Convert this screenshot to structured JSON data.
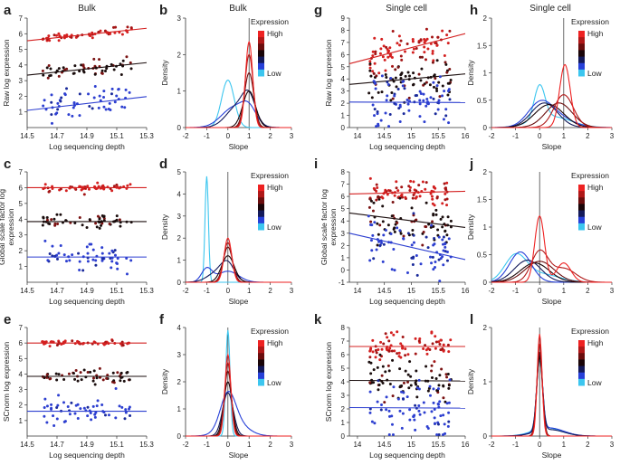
{
  "figure": {
    "column_headers": [
      {
        "label": "Bulk",
        "over": "a"
      },
      {
        "label": "Bulk",
        "over": "b"
      },
      {
        "label": "Single cell",
        "over": "g"
      },
      {
        "label": "Single cell",
        "over": "h"
      }
    ],
    "legend": {
      "title": "Expression",
      "high_label": "High",
      "low_label": "Low"
    },
    "colors": {
      "high": "#d42020",
      "mid": "#1a0d0d",
      "low": "#2d3fd0",
      "lowest": "#33c1e6",
      "gradient": [
        "#ee2222",
        "#b01818",
        "#6b0d0d",
        "#1a0508",
        "#141a5a",
        "#2740d8",
        "#3cc6ef"
      ]
    }
  },
  "chart_data": [
    {
      "id": "a",
      "type": "scatter",
      "panel_label": "a",
      "xlabel": "Log sequencing depth",
      "ylabel": "Raw log expression",
      "xlim": [
        14.5,
        15.3
      ],
      "ylim": [
        0,
        7
      ],
      "xticks": [
        14.5,
        14.7,
        14.9,
        15.1,
        15.3
      ],
      "yticks": [
        1,
        2,
        3,
        4,
        5,
        6,
        7
      ],
      "groups": [
        {
          "level": "high",
          "color": "#d42020",
          "fit": {
            "intercept_at_xmin": 5.55,
            "slope": 1.0
          },
          "center": 5.95,
          "spread": 0.12
        },
        {
          "level": "mid",
          "color": "#1a0d0d",
          "fit": {
            "intercept_at_xmin": 3.35,
            "slope": 1.0
          },
          "center": 3.8,
          "spread": 0.25
        },
        {
          "level": "low",
          "color": "#2d3fd0",
          "fit": {
            "intercept_at_xmin": 1.1,
            "slope": 1.1
          },
          "center": 1.7,
          "spread": 0.45
        }
      ]
    },
    {
      "id": "b",
      "type": "line",
      "panel_label": "b",
      "xlabel": "Slope",
      "ylabel": "Density",
      "xlim": [
        -2,
        3
      ],
      "ylim": [
        0,
        3
      ],
      "xticks": [
        -2,
        -1,
        0,
        1,
        2,
        3
      ],
      "yticks": [
        0,
        1,
        2,
        3
      ],
      "vline": 1,
      "series": [
        {
          "color": "#3cc6ef",
          "peaks": [
            [
              0,
              1.3,
              0.3
            ]
          ]
        },
        {
          "color": "#2740d8",
          "peaks": [
            [
              0.3,
              0.55,
              0.6
            ],
            [
              1.0,
              0.4,
              0.35
            ]
          ]
        },
        {
          "color": "#141a5a",
          "peaks": [
            [
              0.5,
              0.6,
              0.55
            ],
            [
              1.0,
              0.6,
              0.3
            ]
          ]
        },
        {
          "color": "#1a0508",
          "peaks": [
            [
              1.0,
              1.0,
              0.3
            ]
          ]
        },
        {
          "color": "#6b0d0d",
          "peaks": [
            [
              1.0,
              1.5,
              0.22
            ]
          ]
        },
        {
          "color": "#b01818",
          "peaks": [
            [
              1.0,
              2.0,
              0.19
            ]
          ]
        },
        {
          "color": "#ee2222",
          "peaks": [
            [
              1.0,
              2.35,
              0.17
            ]
          ]
        }
      ]
    },
    {
      "id": "c",
      "type": "scatter",
      "panel_label": "c",
      "xlabel": "Log sequencing depth",
      "ylabel": "Global scale factor log expression",
      "xlim": [
        14.5,
        15.3
      ],
      "ylim": [
        0,
        7
      ],
      "xticks": [
        14.5,
        14.7,
        14.9,
        15.1,
        15.3
      ],
      "yticks": [
        1,
        2,
        3,
        4,
        5,
        6,
        7
      ],
      "groups": [
        {
          "level": "high",
          "color": "#d42020",
          "fit": {
            "intercept_at_xmin": 6.0,
            "slope": 0.0
          },
          "center": 6.0,
          "spread": 0.1
        },
        {
          "level": "mid",
          "color": "#1a0d0d",
          "fit": {
            "intercept_at_xmin": 3.85,
            "slope": 0.0
          },
          "center": 3.85,
          "spread": 0.22
        },
        {
          "level": "low",
          "color": "#2d3fd0",
          "fit": {
            "intercept_at_xmin": 1.6,
            "slope": 0.0
          },
          "center": 1.6,
          "spread": 0.45
        }
      ]
    },
    {
      "id": "d",
      "type": "line",
      "panel_label": "d",
      "xlabel": "Slope",
      "ylabel": "Density",
      "xlim": [
        -2,
        3
      ],
      "ylim": [
        0,
        5
      ],
      "xticks": [
        -2,
        -1,
        0,
        1,
        2,
        3
      ],
      "yticks": [
        0,
        1,
        2,
        3,
        4,
        5
      ],
      "vline": 0,
      "series": [
        {
          "color": "#3cc6ef",
          "peaks": [
            [
              -1.0,
              4.8,
              0.08
            ]
          ]
        },
        {
          "color": "#2740d8",
          "peaks": [
            [
              -1.0,
              0.6,
              0.25
            ],
            [
              0.0,
              0.5,
              0.5
            ]
          ]
        },
        {
          "color": "#141a5a",
          "peaks": [
            [
              -0.4,
              0.5,
              0.5
            ],
            [
              0.0,
              0.6,
              0.3
            ]
          ]
        },
        {
          "color": "#1a0508",
          "peaks": [
            [
              0.0,
              1.2,
              0.3
            ]
          ]
        },
        {
          "color": "#6b0d0d",
          "peaks": [
            [
              0.0,
              1.6,
              0.22
            ]
          ]
        },
        {
          "color": "#b01818",
          "peaks": [
            [
              0.0,
              1.8,
              0.2
            ]
          ]
        },
        {
          "color": "#ee2222",
          "peaks": [
            [
              0.0,
              2.0,
              0.18
            ]
          ]
        }
      ]
    },
    {
      "id": "e",
      "type": "scatter",
      "panel_label": "e",
      "xlabel": "Log sequencing depth",
      "ylabel": "SCnorm log expression",
      "xlim": [
        14.5,
        15.3
      ],
      "ylim": [
        0,
        7
      ],
      "xticks": [
        14.5,
        14.7,
        14.9,
        15.1,
        15.3
      ],
      "yticks": [
        1,
        2,
        3,
        4,
        5,
        6,
        7
      ],
      "groups": [
        {
          "level": "high",
          "color": "#d42020",
          "fit": {
            "intercept_at_xmin": 6.0,
            "slope": 0.0
          },
          "center": 6.0,
          "spread": 0.1
        },
        {
          "level": "mid",
          "color": "#1a0d0d",
          "fit": {
            "intercept_at_xmin": 3.85,
            "slope": 0.0
          },
          "center": 3.85,
          "spread": 0.22
        },
        {
          "level": "low",
          "color": "#2d3fd0",
          "fit": {
            "intercept_at_xmin": 1.6,
            "slope": 0.0
          },
          "center": 1.6,
          "spread": 0.45
        }
      ]
    },
    {
      "id": "f",
      "type": "line",
      "panel_label": "f",
      "xlabel": "Slope",
      "ylabel": "Density",
      "xlim": [
        -2,
        3
      ],
      "ylim": [
        0,
        4
      ],
      "xticks": [
        -2,
        -1,
        0,
        1,
        2,
        3
      ],
      "yticks": [
        0,
        1,
        2,
        3,
        4
      ],
      "vline": 0,
      "series": [
        {
          "color": "#3cc6ef",
          "peaks": [
            [
              0.0,
              3.9,
              0.1
            ]
          ]
        },
        {
          "color": "#2740d8",
          "peaks": [
            [
              0.0,
              1.2,
              0.35
            ],
            [
              0.3,
              0.5,
              0.6
            ]
          ]
        },
        {
          "color": "#141a5a",
          "peaks": [
            [
              0.0,
              1.6,
              0.25
            ]
          ]
        },
        {
          "color": "#1a0508",
          "peaks": [
            [
              0.0,
              2.0,
              0.2
            ]
          ]
        },
        {
          "color": "#6b0d0d",
          "peaks": [
            [
              0.0,
              2.4,
              0.17
            ]
          ]
        },
        {
          "color": "#b01818",
          "peaks": [
            [
              0.0,
              2.7,
              0.15
            ]
          ]
        },
        {
          "color": "#ee2222",
          "peaks": [
            [
              0.0,
              3.0,
              0.14
            ]
          ]
        }
      ]
    },
    {
      "id": "g",
      "type": "scatter",
      "panel_label": "g",
      "xlabel": "Log sequencing depth",
      "ylabel": "Raw log expression",
      "xlim": [
        13.85,
        16.0
      ],
      "ylim": [
        0,
        9
      ],
      "xticks": [
        14.0,
        14.5,
        15.0,
        15.5,
        16.0
      ],
      "yticks": [
        0,
        1,
        2,
        3,
        4,
        5,
        6,
        7,
        8,
        9
      ],
      "groups": [
        {
          "level": "high",
          "color": "#d42020",
          "fit": {
            "intercept_at_xmin": 5.25,
            "slope": 1.15
          },
          "center": 6.5,
          "spread": 0.6
        },
        {
          "level": "mid",
          "color": "#1a0d0d",
          "fit": {
            "intercept_at_xmin": 3.55,
            "slope": 0.4
          },
          "center": 4.0,
          "spread": 0.8
        },
        {
          "level": "low",
          "color": "#2d3fd0",
          "fit": {
            "intercept_at_xmin": 2.1,
            "slope": -0.02
          },
          "center": 2.0,
          "spread": 1.1
        }
      ]
    },
    {
      "id": "h",
      "type": "line",
      "panel_label": "h",
      "xlabel": "Slope",
      "ylabel": "Density",
      "xlim": [
        -2,
        3
      ],
      "ylim": [
        0,
        2.0
      ],
      "xticks": [
        -2,
        -1,
        0,
        1,
        2,
        3
      ],
      "yticks": [
        0,
        0.5,
        1.0,
        1.5,
        2.0
      ],
      "vline": 1,
      "series": [
        {
          "color": "#3cc6ef",
          "peaks": [
            [
              0.0,
              0.62,
              0.22
            ],
            [
              0.5,
              0.2,
              0.8
            ]
          ]
        },
        {
          "color": "#2740d8",
          "peaks": [
            [
              0.0,
              0.35,
              0.5
            ],
            [
              0.6,
              0.2,
              0.7
            ]
          ]
        },
        {
          "color": "#141a5a",
          "peaks": [
            [
              0.2,
              0.45,
              0.55
            ]
          ]
        },
        {
          "color": "#1a0508",
          "peaks": [
            [
              0.4,
              0.42,
              0.6
            ]
          ]
        },
        {
          "color": "#6b0d0d",
          "peaks": [
            [
              0.8,
              0.45,
              0.55
            ]
          ]
        },
        {
          "color": "#b01818",
          "peaks": [
            [
              1.0,
              0.6,
              0.4
            ]
          ]
        },
        {
          "color": "#ee2222",
          "peaks": [
            [
              1.05,
              1.15,
              0.22
            ]
          ]
        }
      ]
    },
    {
      "id": "i",
      "type": "scatter",
      "panel_label": "i",
      "xlabel": "Log sequencing depth",
      "ylabel": "Global scale factor log expression",
      "xlim": [
        13.85,
        16.0
      ],
      "ylim": [
        -1,
        8
      ],
      "xticks": [
        14.0,
        14.5,
        15.0,
        15.5,
        16.0
      ],
      "yticks": [
        -1,
        0,
        1,
        2,
        3,
        4,
        5,
        6,
        7,
        8
      ],
      "groups": [
        {
          "level": "high",
          "color": "#d42020",
          "fit": {
            "intercept_at_xmin": 6.2,
            "slope": 0.1
          },
          "center": 6.4,
          "spread": 0.5
        },
        {
          "level": "mid",
          "color": "#1a0d0d",
          "fit": {
            "intercept_at_xmin": 4.65,
            "slope": -0.55
          },
          "center": 4.0,
          "spread": 0.8
        },
        {
          "level": "low",
          "color": "#2d3fd0",
          "fit": {
            "intercept_at_xmin": 3.0,
            "slope": -1.0
          },
          "center": 2.0,
          "spread": 1.2
        }
      ]
    },
    {
      "id": "j",
      "type": "line",
      "panel_label": "j",
      "xlabel": "Slope",
      "ylabel": "Density",
      "xlim": [
        -2,
        3
      ],
      "ylim": [
        0,
        2.0
      ],
      "xticks": [
        -2,
        -1,
        0,
        1,
        2,
        3
      ],
      "yticks": [
        0,
        0.5,
        1.0,
        1.5,
        2.0
      ],
      "vline": 0,
      "series": [
        {
          "color": "#3cc6ef",
          "peaks": [
            [
              -1.0,
              0.45,
              0.45
            ],
            [
              0.0,
              0.15,
              0.8
            ]
          ]
        },
        {
          "color": "#2740d8",
          "peaks": [
            [
              -0.8,
              0.55,
              0.45
            ]
          ]
        },
        {
          "color": "#141a5a",
          "peaks": [
            [
              -0.5,
              0.4,
              0.55
            ]
          ]
        },
        {
          "color": "#1a0508",
          "peaks": [
            [
              -0.2,
              0.35,
              0.6
            ]
          ]
        },
        {
          "color": "#6b0d0d",
          "peaks": [
            [
              0.0,
              0.38,
              0.6
            ]
          ]
        },
        {
          "color": "#b01818",
          "peaks": [
            [
              0.0,
              0.55,
              0.35
            ],
            [
              1.0,
              0.25,
              0.5
            ]
          ]
        },
        {
          "color": "#ee2222",
          "peaks": [
            [
              0.0,
              1.2,
              0.2
            ],
            [
              1.0,
              0.35,
              0.3
            ]
          ]
        }
      ]
    },
    {
      "id": "k",
      "type": "scatter",
      "panel_label": "k",
      "xlabel": "Log sequencing depth",
      "ylabel": "SCnorm log expression",
      "xlim": [
        13.85,
        16.0
      ],
      "ylim": [
        0,
        8
      ],
      "xticks": [
        14.0,
        14.5,
        15.0,
        15.5,
        16.0
      ],
      "yticks": [
        0,
        1,
        2,
        3,
        4,
        5,
        6,
        7,
        8
      ],
      "groups": [
        {
          "level": "high",
          "color": "#d42020",
          "fit": {
            "intercept_at_xmin": 6.6,
            "slope": 0.0
          },
          "center": 6.6,
          "spread": 0.5
        },
        {
          "level": "mid",
          "color": "#1a0d0d",
          "fit": {
            "intercept_at_xmin": 4.1,
            "slope": -0.02
          },
          "center": 4.1,
          "spread": 0.8
        },
        {
          "level": "low",
          "color": "#2d3fd0",
          "fit": {
            "intercept_at_xmin": 2.1,
            "slope": -0.02
          },
          "center": 2.1,
          "spread": 1.1
        }
      ]
    },
    {
      "id": "l",
      "type": "line",
      "panel_label": "l",
      "xlabel": "Slope",
      "ylabel": "Density",
      "xlim": [
        -2,
        3
      ],
      "ylim": [
        0,
        2
      ],
      "xticks": [
        -2,
        -1,
        0,
        1,
        2,
        3
      ],
      "yticks": [
        0,
        1,
        2
      ],
      "vline": 0,
      "series": [
        {
          "color": "#3cc6ef",
          "peaks": [
            [
              0.0,
              1.3,
              0.12
            ],
            [
              0.3,
              0.15,
              0.6
            ]
          ]
        },
        {
          "color": "#2740d8",
          "peaks": [
            [
              0.0,
              1.35,
              0.12
            ],
            [
              0.4,
              0.15,
              0.6
            ]
          ]
        },
        {
          "color": "#141a5a",
          "peaks": [
            [
              0.0,
              1.4,
              0.12
            ],
            [
              0.4,
              0.12,
              0.6
            ]
          ]
        },
        {
          "color": "#1a0508",
          "peaks": [
            [
              0.0,
              1.45,
              0.12
            ]
          ]
        },
        {
          "color": "#6b0d0d",
          "peaks": [
            [
              0.0,
              1.55,
              0.12
            ]
          ]
        },
        {
          "color": "#b01818",
          "peaks": [
            [
              0.0,
              1.7,
              0.11
            ]
          ]
        },
        {
          "color": "#ee2222",
          "peaks": [
            [
              0.0,
              1.88,
              0.1
            ]
          ]
        }
      ]
    }
  ]
}
